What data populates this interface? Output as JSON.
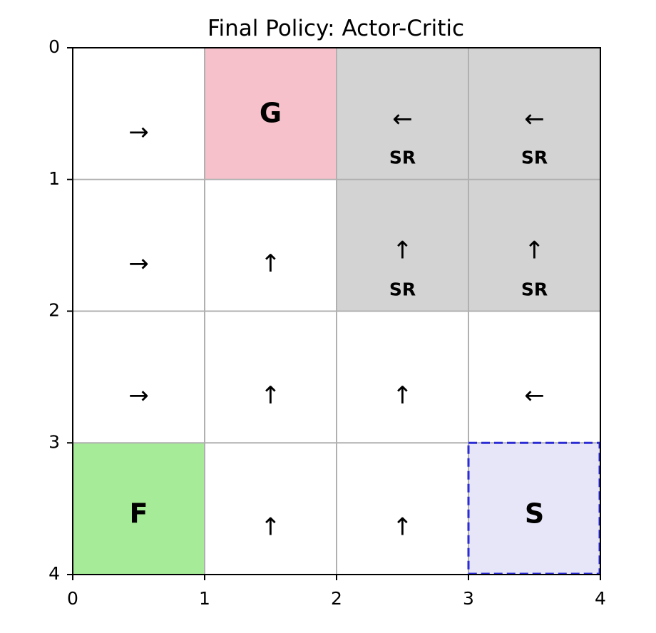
{
  "title": "Final Policy: Actor-Critic",
  "grid": {
    "rows": 4,
    "cols": 4,
    "x_ticks": [
      "0",
      "1",
      "2",
      "3",
      "4"
    ],
    "y_ticks": [
      "0",
      "1",
      "2",
      "3",
      "4"
    ]
  },
  "colors": {
    "goal": "#f6c1cb",
    "special": "#d3d3d3",
    "finish": "#a6eb97",
    "start": "#e6e6f8",
    "start_border": "#2b2bd6",
    "grid_line": "#b0b0b0",
    "empty": "#ffffff"
  },
  "cells": [
    {
      "row": 0,
      "col": 0,
      "type": "empty",
      "arrow": "→"
    },
    {
      "row": 0,
      "col": 1,
      "type": "goal",
      "label": "G"
    },
    {
      "row": 0,
      "col": 2,
      "type": "special",
      "arrow": "←",
      "tag": "SR"
    },
    {
      "row": 0,
      "col": 3,
      "type": "special",
      "arrow": "←",
      "tag": "SR"
    },
    {
      "row": 1,
      "col": 0,
      "type": "empty",
      "arrow": "→"
    },
    {
      "row": 1,
      "col": 1,
      "type": "empty",
      "arrow": "↑"
    },
    {
      "row": 1,
      "col": 2,
      "type": "special",
      "arrow": "↑",
      "tag": "SR"
    },
    {
      "row": 1,
      "col": 3,
      "type": "special",
      "arrow": "↑",
      "tag": "SR"
    },
    {
      "row": 2,
      "col": 0,
      "type": "empty",
      "arrow": "→"
    },
    {
      "row": 2,
      "col": 1,
      "type": "empty",
      "arrow": "↑"
    },
    {
      "row": 2,
      "col": 2,
      "type": "empty",
      "arrow": "↑"
    },
    {
      "row": 2,
      "col": 3,
      "type": "empty",
      "arrow": "←"
    },
    {
      "row": 3,
      "col": 0,
      "type": "finish",
      "label": "F"
    },
    {
      "row": 3,
      "col": 1,
      "type": "empty",
      "arrow": "↑"
    },
    {
      "row": 3,
      "col": 2,
      "type": "empty",
      "arrow": "↑"
    },
    {
      "row": 3,
      "col": 3,
      "type": "start",
      "label": "S"
    }
  ]
}
